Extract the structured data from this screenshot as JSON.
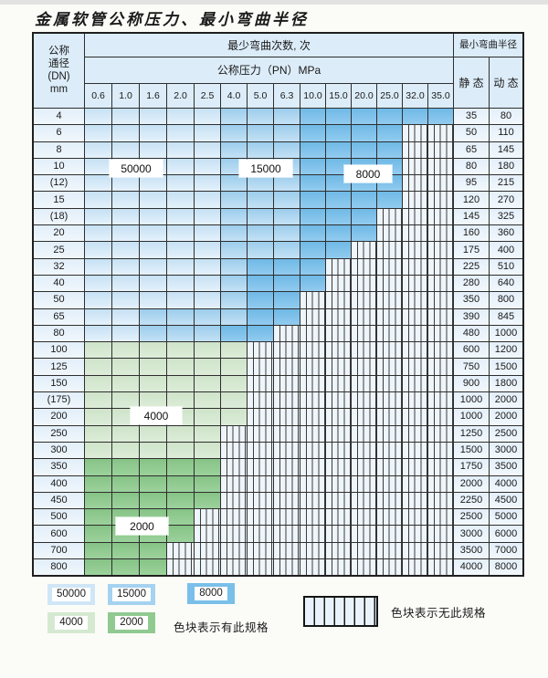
{
  "title": "金属软管公称压力、最小弯曲半径",
  "table": {
    "header": {
      "dn_label_lines": [
        "公称",
        "通径",
        "(DN)",
        "mm"
      ],
      "bend_cycles_label": "最少弯曲次数, 次",
      "pressure_label": "公称压力（PN）MPa",
      "radius_label": "最小弯曲半径",
      "static_label": "静 态",
      "dynamic_label": "动 态",
      "pressures": [
        "0.6",
        "1.0",
        "1.6",
        "2.0",
        "2.5",
        "4.0",
        "5.0",
        "6.3",
        "10.0",
        "15.0",
        "20.0",
        "25.0",
        "32.0",
        "35.0"
      ]
    },
    "rows": [
      {
        "dn": "4",
        "static": "35",
        "dynamic": "80",
        "cells": [
          "50000",
          "50000",
          "50000",
          "50000",
          "50000",
          "15000",
          "15000",
          "15000",
          "8000",
          "8000",
          "8000",
          "8000",
          "8000",
          "8000"
        ]
      },
      {
        "dn": "6",
        "static": "50",
        "dynamic": "110",
        "cells": [
          "50000",
          "50000",
          "50000",
          "50000",
          "50000",
          "15000",
          "15000",
          "15000",
          "8000",
          "8000",
          "8000",
          "8000",
          "none",
          "none"
        ]
      },
      {
        "dn": "8",
        "static": "65",
        "dynamic": "145",
        "cells": [
          "50000",
          "50000",
          "50000",
          "50000",
          "50000",
          "15000",
          "15000",
          "15000",
          "8000",
          "8000",
          "8000",
          "8000",
          "none",
          "none"
        ]
      },
      {
        "dn": "10",
        "static": "80",
        "dynamic": "180",
        "cells": [
          "50000",
          "50000",
          "50000",
          "50000",
          "50000",
          "15000",
          "15000",
          "15000",
          "8000",
          "8000",
          "8000",
          "8000",
          "none",
          "none"
        ]
      },
      {
        "dn": "(12)",
        "static": "95",
        "dynamic": "215",
        "cells": [
          "50000",
          "50000",
          "50000",
          "50000",
          "50000",
          "15000",
          "15000",
          "15000",
          "8000",
          "8000",
          "8000",
          "8000",
          "none",
          "none"
        ]
      },
      {
        "dn": "15",
        "static": "120",
        "dynamic": "270",
        "cells": [
          "50000",
          "50000",
          "50000",
          "50000",
          "50000",
          "15000",
          "15000",
          "15000",
          "8000",
          "8000",
          "8000",
          "8000",
          "none",
          "none"
        ]
      },
      {
        "dn": "(18)",
        "static": "145",
        "dynamic": "325",
        "cells": [
          "50000",
          "50000",
          "50000",
          "50000",
          "50000",
          "15000",
          "15000",
          "15000",
          "8000",
          "8000",
          "8000",
          "none",
          "none",
          "none"
        ]
      },
      {
        "dn": "20",
        "static": "160",
        "dynamic": "360",
        "cells": [
          "50000",
          "50000",
          "50000",
          "50000",
          "50000",
          "15000",
          "15000",
          "15000",
          "8000",
          "8000",
          "8000",
          "none",
          "none",
          "none"
        ]
      },
      {
        "dn": "25",
        "static": "175",
        "dynamic": "400",
        "cells": [
          "50000",
          "50000",
          "50000",
          "50000",
          "50000",
          "15000",
          "15000",
          "15000",
          "8000",
          "8000",
          "none",
          "none",
          "none",
          "none"
        ]
      },
      {
        "dn": "32",
        "static": "225",
        "dynamic": "510",
        "cells": [
          "50000",
          "50000",
          "50000",
          "50000",
          "50000",
          "15000",
          "8000",
          "8000",
          "8000",
          "none",
          "none",
          "none",
          "none",
          "none"
        ]
      },
      {
        "dn": "40",
        "static": "280",
        "dynamic": "640",
        "cells": [
          "50000",
          "50000",
          "50000",
          "50000",
          "50000",
          "15000",
          "8000",
          "8000",
          "8000",
          "none",
          "none",
          "none",
          "none",
          "none"
        ]
      },
      {
        "dn": "50",
        "static": "350",
        "dynamic": "800",
        "cells": [
          "50000",
          "50000",
          "50000",
          "50000",
          "50000",
          "15000",
          "8000",
          "8000",
          "none",
          "none",
          "none",
          "none",
          "none",
          "none"
        ]
      },
      {
        "dn": "65",
        "static": "390",
        "dynamic": "845",
        "cells": [
          "50000",
          "50000",
          "15000",
          "15000",
          "15000",
          "15000",
          "8000",
          "8000",
          "none",
          "none",
          "none",
          "none",
          "none",
          "none"
        ]
      },
      {
        "dn": "80",
        "static": "480",
        "dynamic": "1000",
        "cells": [
          "50000",
          "50000",
          "15000",
          "15000",
          "15000",
          "8000",
          "8000",
          "none",
          "none",
          "none",
          "none",
          "none",
          "none",
          "none"
        ]
      },
      {
        "dn": "100",
        "static": "600",
        "dynamic": "1200",
        "cells": [
          "4000",
          "4000",
          "4000",
          "4000",
          "4000",
          "4000",
          "none",
          "none",
          "none",
          "none",
          "none",
          "none",
          "none",
          "none"
        ]
      },
      {
        "dn": "125",
        "static": "750",
        "dynamic": "1500",
        "cells": [
          "4000",
          "4000",
          "4000",
          "4000",
          "4000",
          "4000",
          "none",
          "none",
          "none",
          "none",
          "none",
          "none",
          "none",
          "none"
        ]
      },
      {
        "dn": "150",
        "static": "900",
        "dynamic": "1800",
        "cells": [
          "4000",
          "4000",
          "4000",
          "4000",
          "4000",
          "4000",
          "none",
          "none",
          "none",
          "none",
          "none",
          "none",
          "none",
          "none"
        ]
      },
      {
        "dn": "(175)",
        "static": "1000",
        "dynamic": "2000",
        "cells": [
          "4000",
          "4000",
          "4000",
          "4000",
          "4000",
          "4000",
          "none",
          "none",
          "none",
          "none",
          "none",
          "none",
          "none",
          "none"
        ]
      },
      {
        "dn": "200",
        "static": "1000",
        "dynamic": "2000",
        "cells": [
          "4000",
          "4000",
          "4000",
          "4000",
          "4000",
          "4000",
          "none",
          "none",
          "none",
          "none",
          "none",
          "none",
          "none",
          "none"
        ]
      },
      {
        "dn": "250",
        "static": "1250",
        "dynamic": "2500",
        "cells": [
          "4000",
          "4000",
          "4000",
          "4000",
          "4000",
          "none",
          "none",
          "none",
          "none",
          "none",
          "none",
          "none",
          "none",
          "none"
        ]
      },
      {
        "dn": "300",
        "static": "1500",
        "dynamic": "3000",
        "cells": [
          "4000",
          "4000",
          "4000",
          "4000",
          "4000",
          "none",
          "none",
          "none",
          "none",
          "none",
          "none",
          "none",
          "none",
          "none"
        ]
      },
      {
        "dn": "350",
        "static": "1750",
        "dynamic": "3500",
        "cells": [
          "2000",
          "2000",
          "2000",
          "2000",
          "2000",
          "none",
          "none",
          "none",
          "none",
          "none",
          "none",
          "none",
          "none",
          "none"
        ]
      },
      {
        "dn": "400",
        "static": "2000",
        "dynamic": "4000",
        "cells": [
          "2000",
          "2000",
          "2000",
          "2000",
          "2000",
          "none",
          "none",
          "none",
          "none",
          "none",
          "none",
          "none",
          "none",
          "none"
        ]
      },
      {
        "dn": "450",
        "static": "2250",
        "dynamic": "4500",
        "cells": [
          "2000",
          "2000",
          "2000",
          "2000",
          "2000",
          "none",
          "none",
          "none",
          "none",
          "none",
          "none",
          "none",
          "none",
          "none"
        ]
      },
      {
        "dn": "500",
        "static": "2500",
        "dynamic": "5000",
        "cells": [
          "2000",
          "2000",
          "2000",
          "2000",
          "none",
          "none",
          "none",
          "none",
          "none",
          "none",
          "none",
          "none",
          "none",
          "none"
        ]
      },
      {
        "dn": "600",
        "static": "3000",
        "dynamic": "6000",
        "cells": [
          "2000",
          "2000",
          "2000",
          "2000",
          "none",
          "none",
          "none",
          "none",
          "none",
          "none",
          "none",
          "none",
          "none",
          "none"
        ]
      },
      {
        "dn": "700",
        "static": "3500",
        "dynamic": "7000",
        "cells": [
          "2000",
          "2000",
          "2000",
          "none",
          "none",
          "none",
          "none",
          "none",
          "none",
          "none",
          "none",
          "none",
          "none",
          "none"
        ]
      },
      {
        "dn": "800",
        "static": "4000",
        "dynamic": "8000",
        "cells": [
          "2000",
          "2000",
          "2000",
          "none",
          "none",
          "none",
          "none",
          "none",
          "none",
          "none",
          "none",
          "none",
          "none",
          "none"
        ]
      }
    ]
  },
  "overlays": [
    {
      "text": "50000"
    },
    {
      "text": "15000"
    },
    {
      "text": "8000"
    },
    {
      "text": "4000"
    },
    {
      "text": "2000"
    }
  ],
  "legend": {
    "items": [
      {
        "label": "50000",
        "color": "#cfe6f7"
      },
      {
        "label": "15000",
        "color": "#a5d2f0"
      },
      {
        "label": "8000",
        "color": "#79bfe9"
      },
      {
        "label": "4000",
        "color": "#d5e9d1"
      },
      {
        "label": "2000",
        "color": "#90ca90"
      }
    ],
    "has_spec_label": "色块表示有此规格",
    "no_spec_label": "色块表示无此规格"
  },
  "colors": {
    "grid_line": "#2e2e2e",
    "header_bg": "#dcecf8",
    "cycles_50000": "#cfe6f7",
    "cycles_15000": "#a5d2f0",
    "cycles_8000": "#79bfe9",
    "cycles_4000": "#d5e9d1",
    "cycles_2000": "#90ca90",
    "no_spec_bg": "#eef5fb"
  }
}
